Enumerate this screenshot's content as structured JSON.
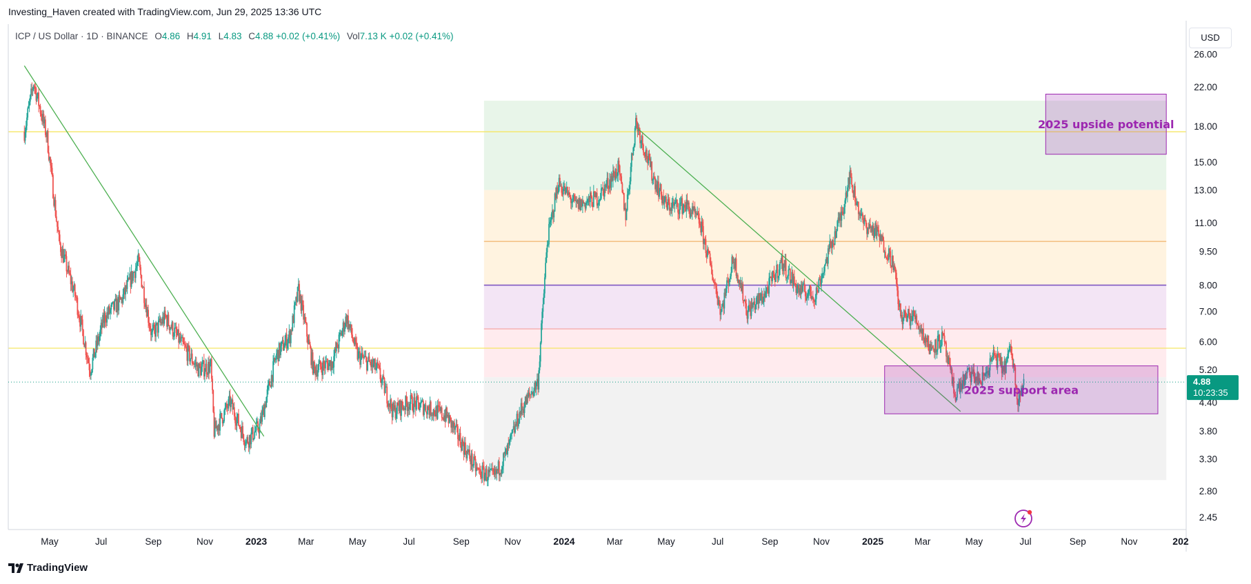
{
  "header": {
    "credit": "Investing_Haven created with TradingView.com, Jun 29, 2025 13:36 UTC",
    "symbol": "ICP / US Dollar · 1D · BINANCE",
    "open_label": "O",
    "open": "4.86",
    "high_label": "H",
    "high": "4.91",
    "low_label": "L",
    "low": "4.83",
    "close_label": "C",
    "close": "4.88",
    "change": "+0.02 (+0.41%)",
    "vol_label": "Vol",
    "vol": "7.13 K",
    "vol_change": "+0.02 (+0.41%)"
  },
  "currency": "USD",
  "brand": "TradingView",
  "colors": {
    "up": "#26a69a",
    "down": "#ef5350",
    "trendline": "#4caf50",
    "yellow_line": "#f5e663",
    "orange_line": "#f0b36b",
    "purple_line": "#7e57c2",
    "price_tag": "#089981",
    "annotation": "#9c27b0"
  },
  "chart_data": {
    "type": "candlestick",
    "series_name": "ICP / US Dollar",
    "y_scale": "log",
    "ylim": [
      2.3,
      28
    ],
    "y_ticks": [
      26.0,
      22.0,
      18.0,
      15.0,
      13.0,
      11.0,
      9.5,
      8.0,
      7.0,
      6.0,
      5.2,
      4.4,
      3.8,
      3.3,
      2.8,
      2.45
    ],
    "y_tick_labels": [
      "26.00",
      "22.00",
      "18.00",
      "15.00",
      "13.00",
      "11.00",
      "9.50",
      "8.00",
      "7.00",
      "6.00",
      "5.20",
      "4.40",
      "3.80",
      "3.30",
      "2.80",
      "2.45"
    ],
    "x_range": [
      "2022-04-01",
      "2026-01-10"
    ],
    "x_ticks": [
      {
        "date": "2022-05-01",
        "label": "May"
      },
      {
        "date": "2022-07-01",
        "label": "Jul"
      },
      {
        "date": "2022-09-01",
        "label": "Sep"
      },
      {
        "date": "2022-11-01",
        "label": "Nov"
      },
      {
        "date": "2023-01-01",
        "label": "2023",
        "bold": true
      },
      {
        "date": "2023-03-01",
        "label": "Mar"
      },
      {
        "date": "2023-05-01",
        "label": "May"
      },
      {
        "date": "2023-07-01",
        "label": "Jul"
      },
      {
        "date": "2023-09-01",
        "label": "Sep"
      },
      {
        "date": "2023-11-01",
        "label": "Nov"
      },
      {
        "date": "2024-01-01",
        "label": "2024",
        "bold": true
      },
      {
        "date": "2024-03-01",
        "label": "Mar"
      },
      {
        "date": "2024-05-01",
        "label": "May"
      },
      {
        "date": "2024-07-01",
        "label": "Jul"
      },
      {
        "date": "2024-09-01",
        "label": "Sep"
      },
      {
        "date": "2024-11-01",
        "label": "Nov"
      },
      {
        "date": "2025-01-01",
        "label": "2025",
        "bold": true
      },
      {
        "date": "2025-03-01",
        "label": "Mar"
      },
      {
        "date": "2025-05-01",
        "label": "May"
      },
      {
        "date": "2025-07-01",
        "label": "Jul"
      },
      {
        "date": "2025-09-01",
        "label": "Sep"
      },
      {
        "date": "2025-11-01",
        "label": "Nov"
      },
      {
        "date": "2026-01-01",
        "label": "202",
        "bold": true
      }
    ],
    "price_path": [
      [
        "2022-04-01",
        17.5
      ],
      [
        "2022-04-12",
        22.5
      ],
      [
        "2022-04-28",
        17.0
      ],
      [
        "2022-05-12",
        10.0
      ],
      [
        "2022-06-01",
        7.5
      ],
      [
        "2022-06-18",
        5.2
      ],
      [
        "2022-07-05",
        6.8
      ],
      [
        "2022-07-25",
        7.4
      ],
      [
        "2022-08-14",
        9.0
      ],
      [
        "2022-08-30",
        6.2
      ],
      [
        "2022-09-15",
        6.8
      ],
      [
        "2022-10-05",
        5.9
      ],
      [
        "2022-10-25",
        5.2
      ],
      [
        "2022-11-08",
        5.3
      ],
      [
        "2022-11-12",
        3.8
      ],
      [
        "2022-12-01",
        4.4
      ],
      [
        "2022-12-20",
        3.6
      ],
      [
        "2023-01-05",
        3.9
      ],
      [
        "2023-01-25",
        5.6
      ],
      [
        "2023-02-10",
        6.2
      ],
      [
        "2023-02-20",
        7.8
      ],
      [
        "2023-03-10",
        5.2
      ],
      [
        "2023-04-01",
        5.4
      ],
      [
        "2023-04-18",
        6.8
      ],
      [
        "2023-05-01",
        5.6
      ],
      [
        "2023-05-25",
        5.2
      ],
      [
        "2023-06-12",
        4.2
      ],
      [
        "2023-07-01",
        4.4
      ],
      [
        "2023-07-20",
        4.3
      ],
      [
        "2023-08-15",
        4.1
      ],
      [
        "2023-09-01",
        3.6
      ],
      [
        "2023-09-20",
        3.1
      ],
      [
        "2023-10-10",
        3.0
      ],
      [
        "2023-10-25",
        3.4
      ],
      [
        "2023-11-10",
        4.2
      ],
      [
        "2023-12-01",
        4.9
      ],
      [
        "2023-12-12",
        10.0
      ],
      [
        "2023-12-25",
        13.5
      ],
      [
        "2024-01-15",
        12.0
      ],
      [
        "2024-02-10",
        12.5
      ],
      [
        "2024-03-05",
        14.5
      ],
      [
        "2024-03-14",
        11.5
      ],
      [
        "2024-03-26",
        18.5
      ],
      [
        "2024-04-15",
        14.0
      ],
      [
        "2024-05-01",
        12.0
      ],
      [
        "2024-05-25",
        12.0
      ],
      [
        "2024-06-10",
        11.0
      ],
      [
        "2024-06-28",
        8.0
      ],
      [
        "2024-07-05",
        7.0
      ],
      [
        "2024-07-20",
        9.2
      ],
      [
        "2024-08-05",
        7.0
      ],
      [
        "2024-08-25",
        7.6
      ],
      [
        "2024-09-15",
        9.0
      ],
      [
        "2024-10-05",
        7.8
      ],
      [
        "2024-10-25",
        7.6
      ],
      [
        "2024-11-10",
        9.5
      ],
      [
        "2024-11-25",
        11.5
      ],
      [
        "2024-12-04",
        14.0
      ],
      [
        "2024-12-20",
        11.0
      ],
      [
        "2025-01-05",
        10.5
      ],
      [
        "2025-01-25",
        9.0
      ],
      [
        "2025-02-03",
        6.8
      ],
      [
        "2025-02-20",
        6.8
      ],
      [
        "2025-03-10",
        5.8
      ],
      [
        "2025-03-25",
        6.1
      ],
      [
        "2025-04-08",
        4.6
      ],
      [
        "2025-04-25",
        5.1
      ],
      [
        "2025-05-10",
        4.9
      ],
      [
        "2025-05-25",
        5.6
      ],
      [
        "2025-06-05",
        5.2
      ],
      [
        "2025-06-14",
        5.8
      ],
      [
        "2025-06-22",
        4.5
      ],
      [
        "2025-06-29",
        4.88
      ]
    ],
    "last_price": {
      "value": 4.88,
      "label": "4.88",
      "countdown": "10:23:35"
    },
    "horizontal_lines": [
      {
        "value": 17.5,
        "color": "yellow"
      },
      {
        "value": 5.8,
        "color": "yellow"
      },
      {
        "value": 10.0,
        "color": "orange"
      },
      {
        "value": 8.0,
        "color": "purple"
      },
      {
        "value": 6.4,
        "color": "red"
      }
    ],
    "fib_zones": {
      "start": "2023-09-28",
      "end": "2025-12-15",
      "bands": [
        {
          "from": 13.0,
          "to": 20.5,
          "color": "#e8f5e9"
        },
        {
          "from": 8.0,
          "to": 13.0,
          "color": "#fff3e0"
        },
        {
          "from": 6.4,
          "to": 8.0,
          "color": "#f3e5f5"
        },
        {
          "from": 5.0,
          "to": 6.4,
          "color": "#ffebee"
        },
        {
          "from": 2.96,
          "to": 5.0,
          "color": "#f2f2f2"
        }
      ]
    },
    "trendlines": [
      {
        "from": [
          "2022-04-01",
          24.5
        ],
        "to": [
          "2023-01-10",
          3.7
        ]
      },
      {
        "from": [
          "2024-03-28",
          17.8
        ],
        "to": [
          "2025-04-15",
          4.2
        ]
      }
    ],
    "annotations": [
      {
        "label": "2025 upside potential",
        "from_date": "2025-07-25",
        "to_date": "2025-12-15",
        "top": 21.2,
        "bottom": 15.6
      },
      {
        "label": "2025 support area",
        "from_date": "2025-01-15",
        "to_date": "2025-12-05",
        "top": 5.3,
        "bottom": 4.15
      }
    ]
  }
}
